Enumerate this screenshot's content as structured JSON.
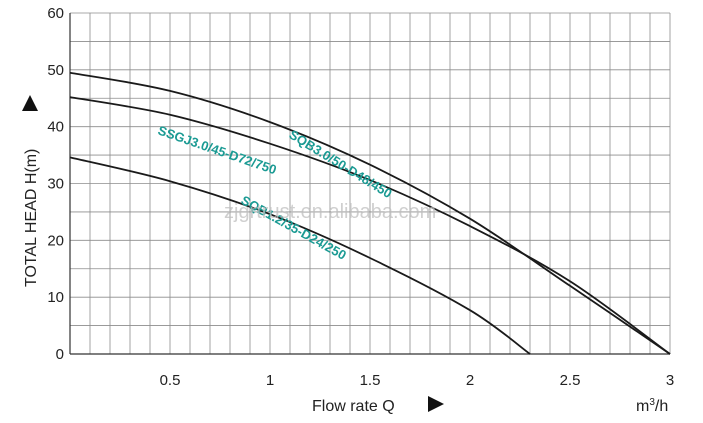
{
  "chart_data": {
    "type": "line",
    "xlabel": "Flow rate Q",
    "xunit": "m³/h",
    "ylabel": "TOTAL HEAD H(m)",
    "xlim": [
      0,
      3
    ],
    "ylim": [
      0,
      60
    ],
    "x_ticks": [
      "0.5",
      "1",
      "1.5",
      "2",
      "2.5",
      "3"
    ],
    "y_ticks": [
      "0",
      "10",
      "20",
      "30",
      "40",
      "50",
      "60"
    ],
    "x_tick_values": [
      0.5,
      1,
      1.5,
      2,
      2.5,
      3
    ],
    "y_tick_values": [
      0,
      10,
      20,
      30,
      40,
      50,
      60
    ],
    "x_minor_step": 0.1,
    "y_minor_step": 5,
    "grid": true,
    "series": [
      {
        "name": "SQB3.0/50-D48/450",
        "x": [
          0,
          0.5,
          1.0,
          1.5,
          2.0,
          2.5,
          3.0
        ],
        "y": [
          49.5,
          46.3,
          40.8,
          33.3,
          23.8,
          12.0,
          0
        ]
      },
      {
        "name": "SSGJ3.0/45-D72/750",
        "x": [
          0,
          0.5,
          1.0,
          1.5,
          2.0,
          2.5,
          3.0
        ],
        "y": [
          45.2,
          42.1,
          37.0,
          30.6,
          22.5,
          12.8,
          0
        ]
      },
      {
        "name": "SQB1.2/35-D24/250",
        "x": [
          0,
          0.5,
          1.0,
          1.5,
          2.0,
          2.3
        ],
        "y": [
          34.6,
          30.4,
          24.6,
          16.9,
          7.7,
          0
        ]
      }
    ],
    "series_color": "#1a1a1a",
    "label_color": "#1a9a93",
    "watermark": "zjgrtrust.en.alibaba.com"
  }
}
